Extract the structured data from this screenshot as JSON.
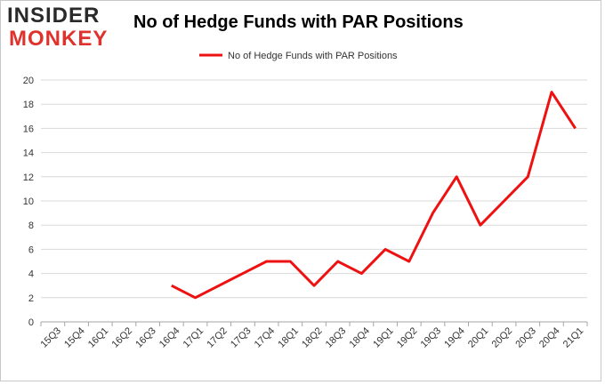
{
  "logo": {
    "line1": "INSIDER",
    "line2": "MONKEY"
  },
  "colors": {
    "series": "#ee1111",
    "grid": "#d9d9d9",
    "axis": "#a6a6a6"
  },
  "chart_data": {
    "type": "line",
    "title": "No of Hedge Funds with PAR Positions",
    "xlabel": "",
    "ylabel": "",
    "ylim": [
      0,
      20
    ],
    "yticks": [
      0,
      2,
      4,
      6,
      8,
      10,
      12,
      14,
      16,
      18,
      20
    ],
    "grid": true,
    "legend": "top-center",
    "categories": [
      "15Q3",
      "15Q4",
      "16Q1",
      "16Q2",
      "16Q3",
      "16Q4",
      "17Q1",
      "17Q2",
      "17Q3",
      "17Q4",
      "18Q1",
      "18Q2",
      "18Q3",
      "18Q4",
      "19Q1",
      "19Q2",
      "19Q3",
      "19Q4",
      "20Q1",
      "20Q2",
      "20Q3",
      "20Q4",
      "21Q1"
    ],
    "series": [
      {
        "name": "No of Hedge Funds with PAR Positions",
        "values": [
          null,
          null,
          null,
          null,
          null,
          3,
          2,
          3,
          4,
          5,
          5,
          3,
          5,
          4,
          6,
          5,
          9,
          12,
          8,
          10,
          12,
          19,
          16
        ]
      }
    ]
  }
}
